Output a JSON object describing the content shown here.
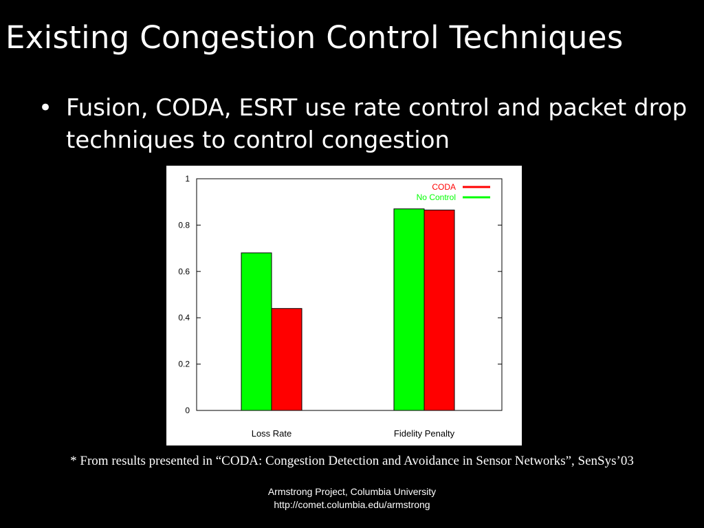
{
  "slide": {
    "title": "Existing Congestion Control Techniques",
    "bullets": [
      {
        "marker": "•",
        "text": "Fusion, CODA, ESRT use rate control and packet drop techniques to control congestion"
      }
    ],
    "source_note": "* From results presented in “CODA: Congestion Detection and Avoidance in Sensor Networks”, SenSys’03",
    "footer": {
      "line1": "Armstrong Project, Columbia University",
      "line2": "http://comet.columbia.edu/armstrong"
    }
  },
  "chart_data": {
    "type": "bar",
    "title": "",
    "xlabel": "",
    "ylabel": "",
    "categories": [
      "Loss Rate",
      "Fidelity Penalty"
    ],
    "series": [
      {
        "name": "No Control",
        "color": "#00ff00",
        "values": [
          0.68,
          0.87
        ]
      },
      {
        "name": "CODA",
        "color": "#ff0000",
        "values": [
          0.44,
          0.865
        ]
      }
    ],
    "legend_order": [
      "CODA",
      "No Control"
    ],
    "ylim": [
      0,
      1
    ],
    "yticks": [
      "0",
      "0.2",
      "0.4",
      "0.6",
      "0.8",
      "1"
    ],
    "grid": false,
    "legend_position": "top-right"
  }
}
